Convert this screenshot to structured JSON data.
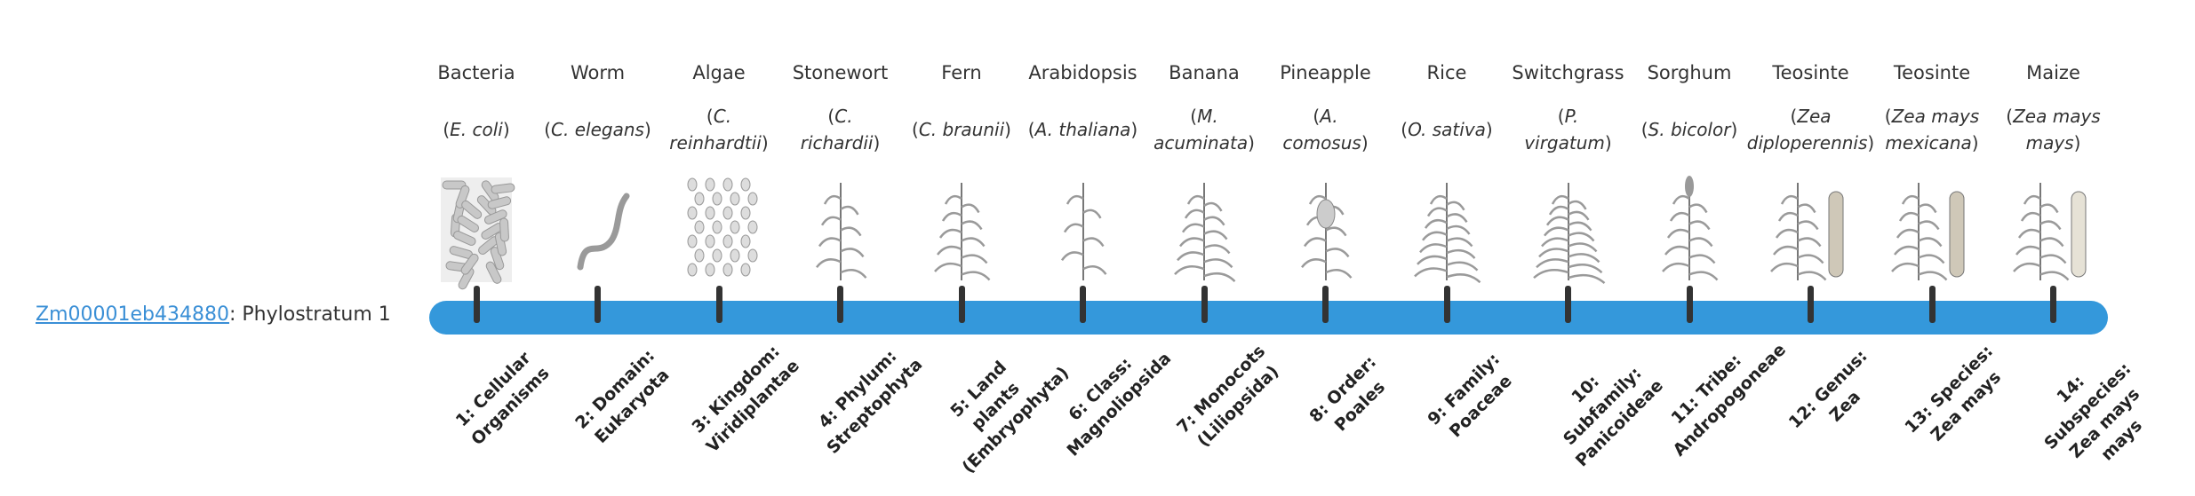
{
  "gene": {
    "id": "Zm00001eb434880",
    "separator": ": ",
    "phylostratum_text": "Phylostratum 1"
  },
  "colors": {
    "bar": "#3498db",
    "tick": "#333333",
    "link": "#3a8fd6"
  },
  "organisms": [
    {
      "common": "Bacteria",
      "species": "E. coli",
      "icon": "bacteria-icon"
    },
    {
      "common": "Worm",
      "species": "C. elegans",
      "icon": "worm-icon"
    },
    {
      "common": "Algae",
      "species": "C. reinhardtii",
      "icon": "algae-icon"
    },
    {
      "common": "Stonewort",
      "species": "C. richardii",
      "icon": "stonewort-icon"
    },
    {
      "common": "Fern",
      "species": "C. braunii",
      "icon": "fern-icon"
    },
    {
      "common": "Arabidopsis",
      "species": "A. thaliana",
      "icon": "arabidopsis-icon"
    },
    {
      "common": "Banana",
      "species": "M. acuminata",
      "icon": "banana-icon"
    },
    {
      "common": "Pineapple",
      "species": "A. comosus",
      "icon": "pineapple-icon"
    },
    {
      "common": "Rice",
      "species": "O. sativa",
      "icon": "rice-icon"
    },
    {
      "common": "Switchgrass",
      "species": "P. virgatum",
      "icon": "switchgrass-icon"
    },
    {
      "common": "Sorghum",
      "species": "S. bicolor",
      "icon": "sorghum-icon"
    },
    {
      "common": "Teosinte",
      "species": "Zea diploperennis",
      "icon": "teosinte-icon"
    },
    {
      "common": "Teosinte",
      "species": "Zea mays mexicana",
      "icon": "teosinte-icon"
    },
    {
      "common": "Maize",
      "species": "Zea mays mays",
      "icon": "maize-icon"
    }
  ],
  "strata": [
    "1: Cellular Organisms",
    "2: Domain: Eukaryota",
    "3: Kingdom: Viridiplantae",
    "4: Phylum: Streptophyta",
    "5: Land plants (Embryophyta)",
    "6: Class: Magnoliopsida",
    "7: Monocots (Liliopsida)",
    "8: Order: Poales",
    "9: Family: Poaceae",
    "10: Subfamily: Panicoideae",
    "11: Tribe: Andropogoneae",
    "12: Genus: Zea",
    "13: Species: Zea mays",
    "14: Subspecies: Zea mays mays"
  ],
  "current_stratum": 1
}
